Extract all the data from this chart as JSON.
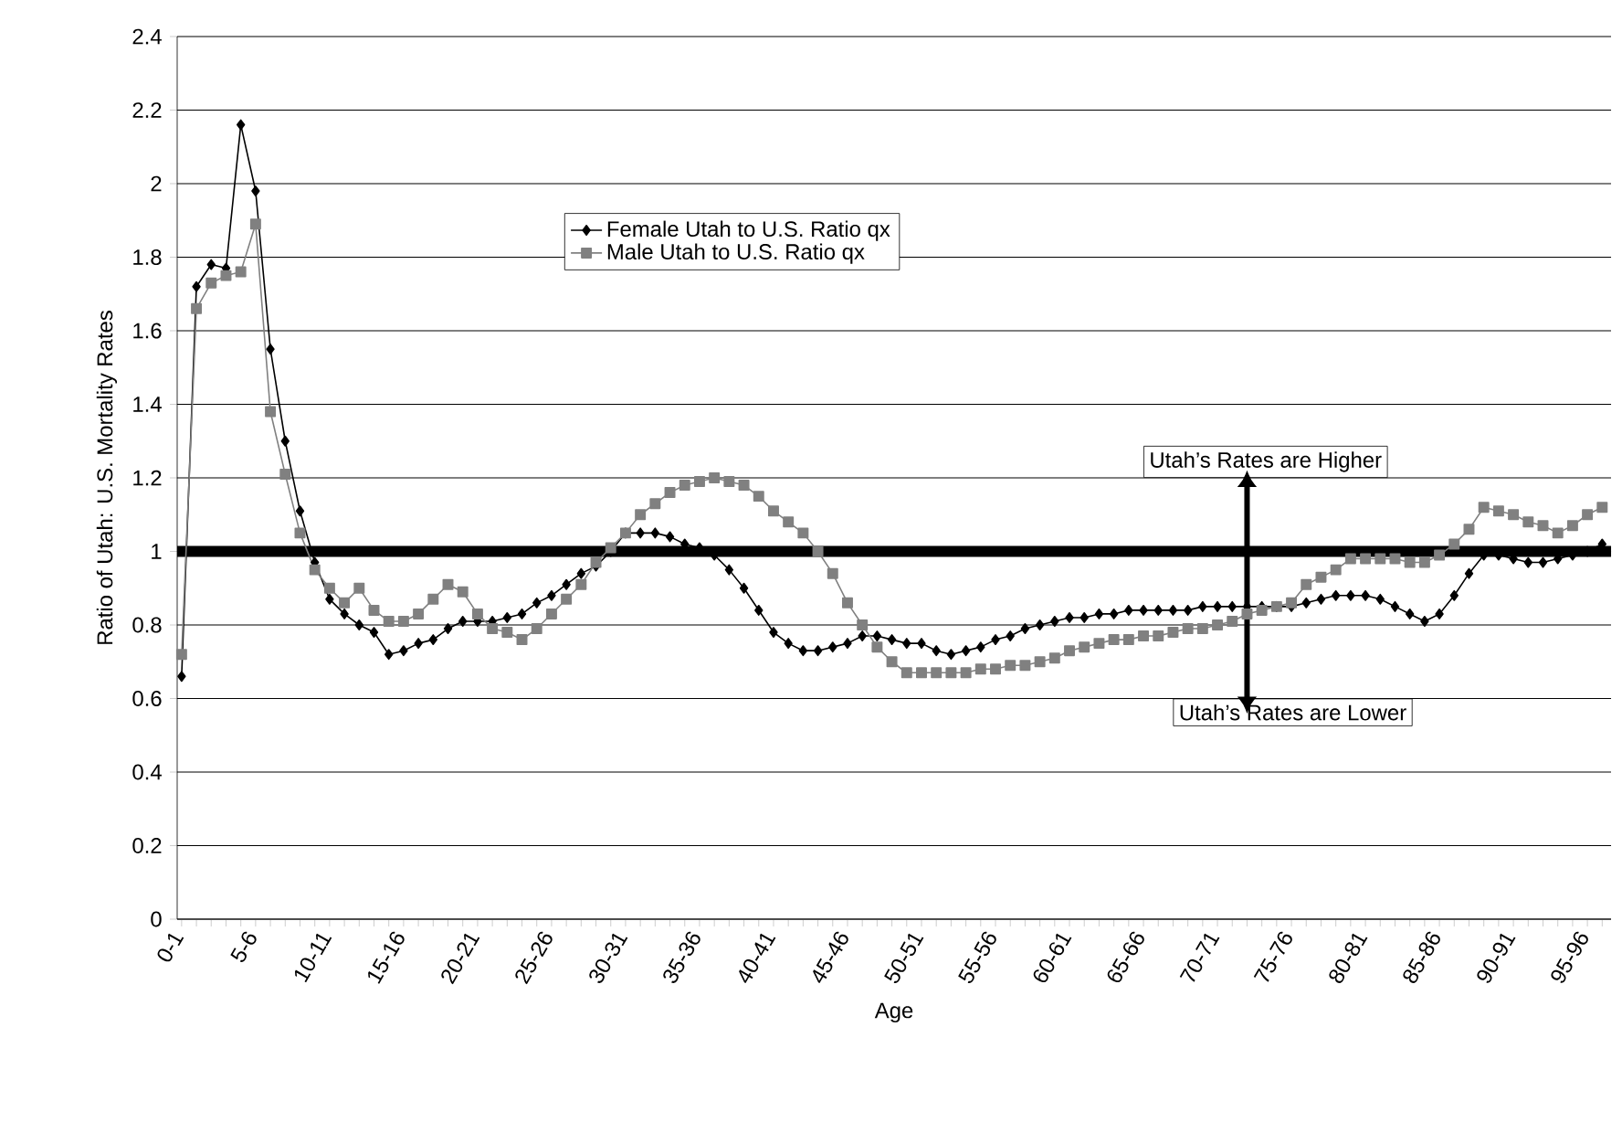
{
  "chart_data": {
    "type": "line",
    "xlabel": "Age",
    "ylabel": "Ratio of Utah: U.S. Mortality Rates",
    "categories": [
      "0-1",
      null,
      null,
      null,
      null,
      "5-6",
      null,
      null,
      null,
      null,
      "10-11",
      null,
      null,
      null,
      null,
      "15-16",
      null,
      null,
      null,
      null,
      "20-21",
      null,
      null,
      null,
      null,
      "25-26",
      null,
      null,
      null,
      null,
      "30-31",
      null,
      null,
      null,
      null,
      "35-36",
      null,
      null,
      null,
      null,
      "40-41",
      null,
      null,
      null,
      null,
      "45-46",
      null,
      null,
      null,
      null,
      "50-51",
      null,
      null,
      null,
      null,
      "55-56",
      null,
      null,
      null,
      null,
      "60-61",
      null,
      null,
      null,
      null,
      "65-66",
      null,
      null,
      null,
      null,
      "70-71",
      null,
      null,
      null,
      null,
      "75-76",
      null,
      null,
      null,
      null,
      "80-81",
      null,
      null,
      null,
      null,
      "85-86",
      null,
      null,
      null,
      null,
      "90-91",
      null,
      null,
      null,
      null,
      "95-96",
      null
    ],
    "series": [
      {
        "name": "Female Utah to U.S. Ratio qx",
        "color": "#000000",
        "marker": "diamond",
        "values": [
          0.66,
          1.72,
          1.78,
          1.77,
          2.16,
          1.98,
          1.55,
          1.3,
          1.11,
          0.97,
          0.87,
          0.83,
          0.8,
          0.78,
          0.72,
          0.73,
          0.75,
          0.76,
          0.79,
          0.81,
          0.81,
          0.81,
          0.82,
          0.83,
          0.86,
          0.88,
          0.91,
          0.94,
          0.96,
          1.0,
          1.05,
          1.05,
          1.05,
          1.04,
          1.02,
          1.01,
          0.99,
          0.95,
          0.9,
          0.84,
          0.78,
          0.75,
          0.73,
          0.73,
          0.74,
          0.75,
          0.77,
          0.77,
          0.76,
          0.75,
          0.75,
          0.73,
          0.72,
          0.73,
          0.74,
          0.76,
          0.77,
          0.79,
          0.8,
          0.81,
          0.82,
          0.82,
          0.83,
          0.83,
          0.84,
          0.84,
          0.84,
          0.84,
          0.84,
          0.85,
          0.85,
          0.85,
          0.85,
          0.85,
          0.85,
          0.85,
          0.86,
          0.87,
          0.88,
          0.88,
          0.88,
          0.87,
          0.85,
          0.83,
          0.81,
          0.83,
          0.88,
          0.94,
          0.99,
          0.99,
          0.98,
          0.97,
          0.97,
          0.98,
          0.99,
          1.0,
          1.02
        ]
      },
      {
        "name": "Male Utah to U.S. Ratio qx",
        "color": "#808080",
        "marker": "square",
        "values": [
          0.72,
          1.66,
          1.73,
          1.75,
          1.76,
          1.89,
          1.38,
          1.21,
          1.05,
          0.95,
          0.9,
          0.86,
          0.9,
          0.84,
          0.81,
          0.81,
          0.83,
          0.87,
          0.91,
          0.89,
          0.83,
          0.79,
          0.78,
          0.76,
          0.79,
          0.83,
          0.87,
          0.91,
          0.97,
          1.01,
          1.05,
          1.1,
          1.13,
          1.16,
          1.18,
          1.19,
          1.2,
          1.19,
          1.18,
          1.15,
          1.11,
          1.08,
          1.05,
          1.0,
          0.94,
          0.86,
          0.8,
          0.74,
          0.7,
          0.67,
          0.67,
          0.67,
          0.67,
          0.67,
          0.68,
          0.68,
          0.69,
          0.69,
          0.7,
          0.71,
          0.73,
          0.74,
          0.75,
          0.76,
          0.76,
          0.77,
          0.77,
          0.78,
          0.79,
          0.79,
          0.8,
          0.81,
          0.83,
          0.84,
          0.85,
          0.86,
          0.91,
          0.93,
          0.95,
          0.98,
          0.98,
          0.98,
          0.98,
          0.97,
          0.97,
          0.99,
          1.02,
          1.06,
          1.12,
          1.11,
          1.1,
          1.08,
          1.07,
          1.05,
          1.07,
          1.1,
          1.12
        ]
      }
    ],
    "ylim": [
      0,
      2.4
    ],
    "yticks": [
      0,
      0.2,
      0.4,
      0.6,
      0.8,
      1,
      1.2,
      1.4,
      1.6,
      1.8,
      2,
      2.2,
      2.4
    ],
    "grid": "y",
    "legend": "top",
    "ref_lines": [
      {
        "axis": "y",
        "value": 1,
        "color": "#000000"
      }
    ],
    "annotations": [
      "Utah’s Rates are Higher",
      "Utah’s Rates are Lower"
    ]
  }
}
